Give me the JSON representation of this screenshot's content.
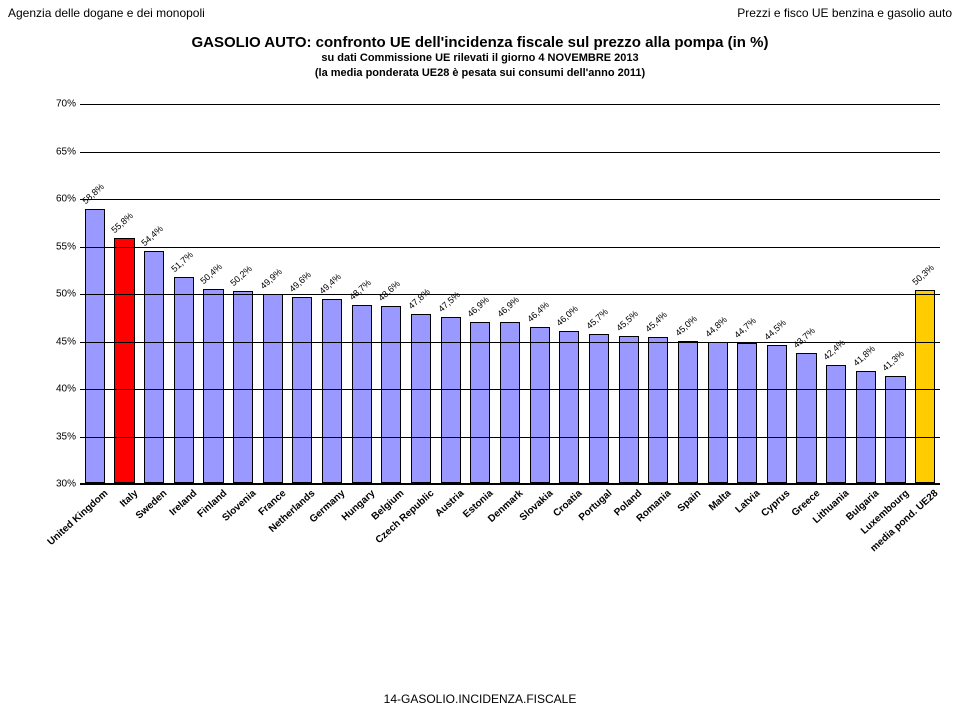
{
  "header": {
    "left": "Agenzia delle dogane e dei monopoli",
    "right": "Prezzi e fisco UE benzina e gasolio auto"
  },
  "title": {
    "main": "GASOLIO AUTO: confronto UE dell'incidenza fiscale sul prezzo alla pompa (in %)",
    "sub1": "su dati Commissione UE rilevati  il giorno  4  NOVEMBRE 2013",
    "sub2": "(la media ponderata UE28 è pesata sui consumi dell'anno 2011)"
  },
  "chart": {
    "type": "bar",
    "ylim": [
      30,
      70
    ],
    "ytick_step": 5,
    "background_color": "#ffffff",
    "grid_color": "#000000",
    "default_bar_color": "#9999ff",
    "border_color": "#000000",
    "bar_border_width": 1,
    "label_fontsize": 9,
    "y_tick_fontsize": 10,
    "x_label_fontsize": 10,
    "bars": [
      {
        "category": "United Kingdom",
        "value": 58.8,
        "label": "58,8%",
        "color": "#9999ff"
      },
      {
        "category": "Italy",
        "value": 55.8,
        "label": "55,8%",
        "color": "#ff0000"
      },
      {
        "category": "Sweden",
        "value": 54.4,
        "label": "54,4%",
        "color": "#9999ff"
      },
      {
        "category": "Ireland",
        "value": 51.7,
        "label": "51,7%",
        "color": "#9999ff"
      },
      {
        "category": "Finland",
        "value": 50.4,
        "label": "50,4%",
        "color": "#9999ff"
      },
      {
        "category": "Slovenia",
        "value": 50.2,
        "label": "50,2%",
        "color": "#9999ff"
      },
      {
        "category": "France",
        "value": 49.9,
        "label": "49,9%",
        "color": "#9999ff"
      },
      {
        "category": "Netherlands",
        "value": 49.6,
        "label": "49,6%",
        "color": "#9999ff"
      },
      {
        "category": "Germany",
        "value": 49.4,
        "label": "49,4%",
        "color": "#9999ff"
      },
      {
        "category": "Hungary",
        "value": 48.7,
        "label": "48,7%",
        "color": "#9999ff"
      },
      {
        "category": "Belgium",
        "value": 48.6,
        "label": "48,6%",
        "color": "#9999ff"
      },
      {
        "category": "Czech Republic",
        "value": 47.8,
        "label": "47,8%",
        "color": "#9999ff"
      },
      {
        "category": "Austria",
        "value": 47.5,
        "label": "47,5%",
        "color": "#9999ff"
      },
      {
        "category": "Estonia",
        "value": 46.9,
        "label": "46,9%",
        "color": "#9999ff"
      },
      {
        "category": "Denmark",
        "value": 46.9,
        "label": "46,9%",
        "color": "#9999ff"
      },
      {
        "category": "Slovakia",
        "value": 46.4,
        "label": "46,4%",
        "color": "#9999ff"
      },
      {
        "category": "Croatia",
        "value": 46.0,
        "label": "46,0%",
        "color": "#9999ff"
      },
      {
        "category": "Portugal",
        "value": 45.7,
        "label": "45,7%",
        "color": "#9999ff"
      },
      {
        "category": "Poland",
        "value": 45.5,
        "label": "45,5%",
        "color": "#9999ff"
      },
      {
        "category": "Romania",
        "value": 45.4,
        "label": "45,4%",
        "color": "#9999ff"
      },
      {
        "category": "Spain",
        "value": 45.0,
        "label": "45,0%",
        "color": "#9999ff"
      },
      {
        "category": "Malta",
        "value": 44.8,
        "label": "44,8%",
        "color": "#9999ff"
      },
      {
        "category": "Latvia",
        "value": 44.7,
        "label": "44,7%",
        "color": "#9999ff"
      },
      {
        "category": "Cyprus",
        "value": 44.5,
        "label": "44,5%",
        "color": "#9999ff"
      },
      {
        "category": "Greece",
        "value": 43.7,
        "label": "43,7%",
        "color": "#9999ff"
      },
      {
        "category": "Lithuania",
        "value": 42.4,
        "label": "42,4%",
        "color": "#9999ff"
      },
      {
        "category": "Bulgaria",
        "value": 41.8,
        "label": "41,8%",
        "color": "#9999ff"
      },
      {
        "category": "Luxembourg",
        "value": 41.3,
        "label": "41,3%",
        "color": "#9999ff"
      },
      {
        "category": "media pond. UE28",
        "value": 50.3,
        "label": "50,3%",
        "color": "#ffcc00"
      }
    ]
  },
  "footer": "14-GASOLIO.INCIDENZA.FISCALE"
}
